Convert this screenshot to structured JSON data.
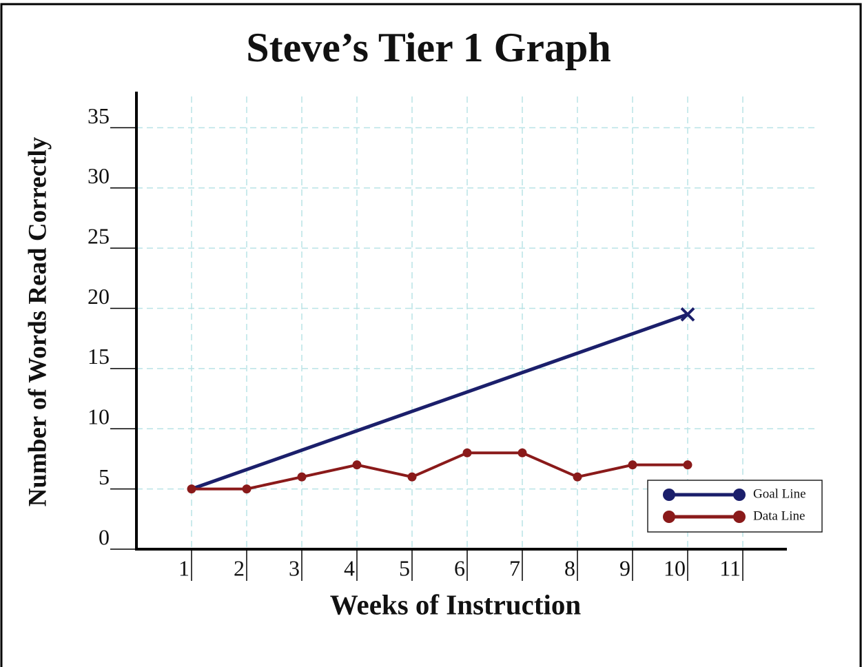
{
  "chart_data": {
    "type": "line",
    "title": "Steve’s Tier 1 Graph",
    "y_label": "Number of Words Read Correctly",
    "x_label": "Weeks of Instruction",
    "xlim": [
      0,
      11.8
    ],
    "xticks": [
      1,
      2,
      3,
      4,
      5,
      6,
      7,
      8,
      9,
      10,
      11
    ],
    "ylim": [
      0,
      38
    ],
    "yticks": [
      0,
      5,
      10,
      15,
      20,
      25,
      30,
      35
    ],
    "grid": true,
    "legend": "lower right",
    "series": [
      {
        "name": "Goal Line",
        "color": "#1b1f6b",
        "x": [
          1,
          10
        ],
        "values": [
          5,
          19.5
        ]
      },
      {
        "name": "Data Line",
        "color": "#8a1a1a",
        "x": [
          1,
          2,
          3,
          4,
          5,
          6,
          7,
          8,
          9,
          10
        ],
        "values": [
          5,
          5,
          6,
          7,
          6,
          8,
          8,
          6,
          7,
          7
        ]
      }
    ]
  }
}
